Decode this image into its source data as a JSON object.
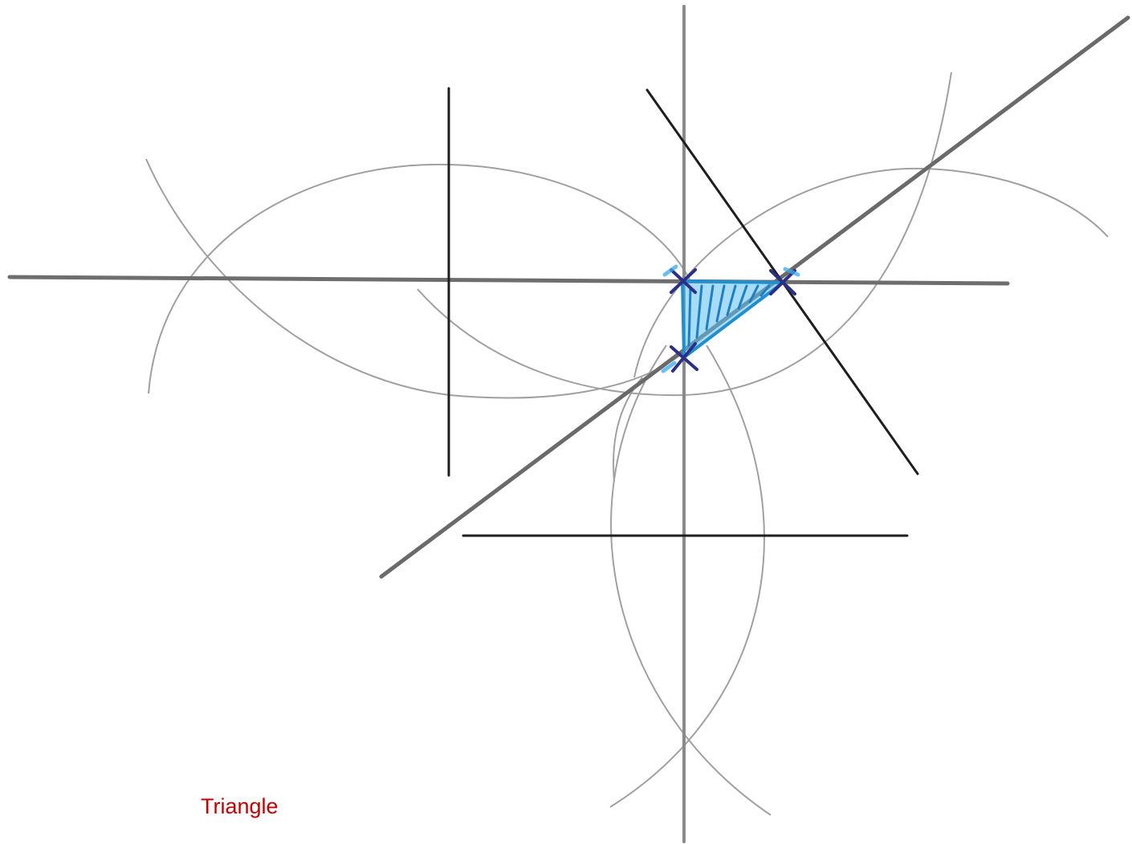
{
  "caption": "Triangle",
  "colors": {
    "caption": "#c00000",
    "construction_line": "#7a7a7a",
    "construction_arc": "#9a9a9a",
    "ink_line": "#1e1e1e",
    "shading": "#2aa4e4",
    "cross_mark": "#2b2f86"
  }
}
